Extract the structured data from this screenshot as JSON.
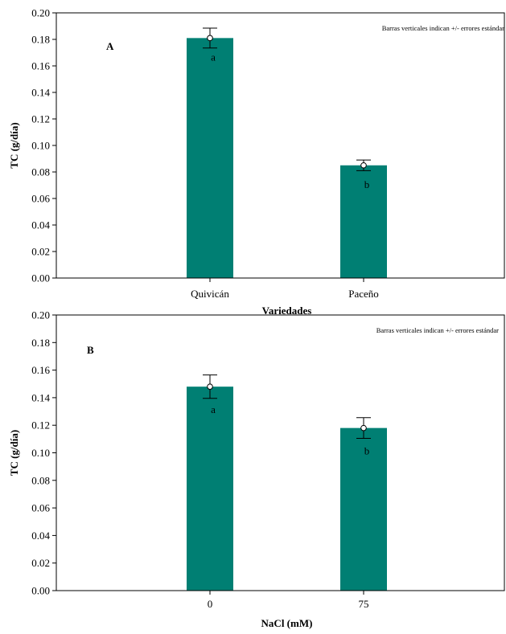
{
  "colors": {
    "bar": "#007f73",
    "axis": "#000000",
    "marker_fill": "#ffffff"
  },
  "chart_data": [
    {
      "type": "bar",
      "panel_label": "A",
      "note": "Barras verticales indican +/- errores estándar",
      "xlabel": "Variedades",
      "ylabel": "TC (g/día)",
      "categories": [
        "Quivicán",
        "Paceño"
      ],
      "values": [
        0.181,
        0.085
      ],
      "errors": [
        0.0075,
        0.004
      ],
      "significance": [
        "a",
        "b"
      ],
      "ylim": [
        0,
        0.2
      ],
      "yticks": [
        "0.00",
        "0.02",
        "0.04",
        "0.06",
        "0.08",
        "0.10",
        "0.12",
        "0.14",
        "0.16",
        "0.18",
        "0.20"
      ],
      "grid": false
    },
    {
      "type": "bar",
      "panel_label": "B",
      "note": "Barras verticales indican +/- errores estándar",
      "xlabel": "NaCl (mM)",
      "ylabel": "TC (g/día)",
      "categories": [
        "0",
        "75"
      ],
      "values": [
        0.148,
        0.118
      ],
      "errors": [
        0.0085,
        0.0075
      ],
      "significance": [
        "a",
        "b"
      ],
      "ylim": [
        0,
        0.2
      ],
      "yticks": [
        "0.00",
        "0.02",
        "0.04",
        "0.06",
        "0.08",
        "0.10",
        "0.12",
        "0.14",
        "0.16",
        "0.18",
        "0.20"
      ],
      "grid": false
    }
  ]
}
